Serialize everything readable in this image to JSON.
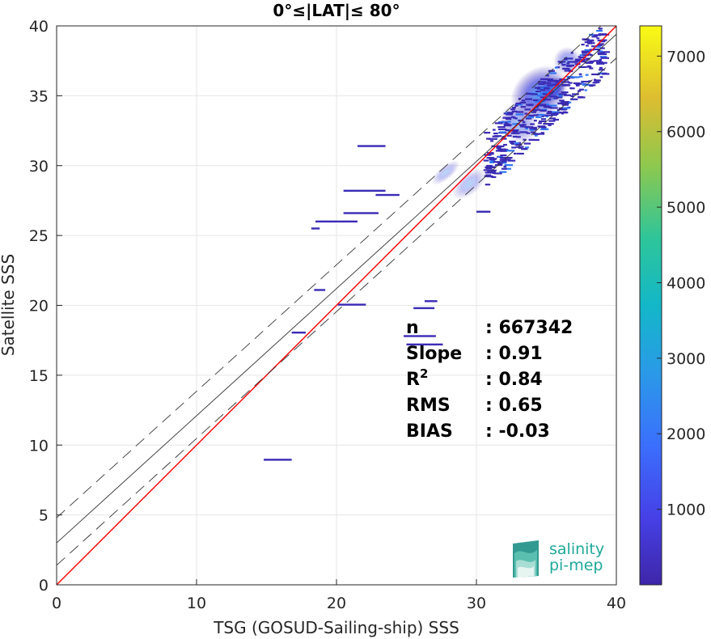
{
  "chart_data": {
    "type": "scatter",
    "title": "0°≤|LAT|≤ 80°",
    "xlabel": "TSG (GOSUD-Sailing-ship) SSS",
    "ylabel": "Satellite SSS",
    "xlim": [
      0,
      40
    ],
    "ylim": [
      0,
      40
    ],
    "xticks": [
      "0",
      "10",
      "20",
      "30",
      "40"
    ],
    "yticks": [
      "0",
      "5",
      "10",
      "15",
      "20",
      "25",
      "30",
      "35",
      "40"
    ],
    "grid": true,
    "colorbar": {
      "range": [
        0,
        7400
      ],
      "ticks": [
        "1000",
        "2000",
        "3000",
        "4000",
        "5000",
        "6000",
        "7000"
      ],
      "colormap": "parula"
    },
    "lines": [
      {
        "kind": "identity",
        "color": "#ff0000",
        "x": [
          0,
          40
        ],
        "y": [
          0,
          40
        ]
      },
      {
        "kind": "regression",
        "color": "#333333",
        "x": [
          0,
          40
        ],
        "y": [
          3.0,
          39.4
        ]
      },
      {
        "kind": "regression-upper",
        "color": "#333333",
        "dash": true,
        "x": [
          0,
          40
        ],
        "y": [
          4.8,
          41.0
        ]
      },
      {
        "kind": "regression-lower",
        "color": "#333333",
        "dash": true,
        "x": [
          0,
          40
        ],
        "y": [
          1.4,
          37.7
        ]
      }
    ],
    "density_clusters": [
      {
        "x": 34.5,
        "y": 35.2,
        "w": 4.5,
        "h": 3.5,
        "density": 2500
      },
      {
        "x": 35.5,
        "y": 35.5,
        "w": 2.0,
        "h": 1.5,
        "density": 4500
      },
      {
        "x": 33.0,
        "y": 33.0,
        "w": 2.5,
        "h": 3.0,
        "density": 800
      },
      {
        "x": 36.5,
        "y": 37.5,
        "w": 2.0,
        "h": 2.0,
        "density": 900
      },
      {
        "x": 29.5,
        "y": 28.7,
        "w": 3.0,
        "h": 1.5,
        "density": 150
      },
      {
        "x": 27.8,
        "y": 29.5,
        "w": 2.5,
        "h": 1.0,
        "density": 100
      }
    ],
    "segments": [
      {
        "x0": 14.8,
        "x1": 16.8,
        "y": 8.95
      },
      {
        "x0": 20.1,
        "x1": 22.1,
        "y": 20.05
      },
      {
        "x0": 18.4,
        "x1": 19.2,
        "y": 21.1
      },
      {
        "x0": 20.5,
        "x1": 23.0,
        "y": 26.6
      },
      {
        "x0": 18.5,
        "x1": 21.5,
        "y": 26.0
      },
      {
        "x0": 20.5,
        "x1": 23.5,
        "y": 28.2
      },
      {
        "x0": 22.8,
        "x1": 24.5,
        "y": 27.9
      },
      {
        "x0": 24.8,
        "x1": 27.1,
        "y": 17.8
      },
      {
        "x0": 25.0,
        "x1": 27.6,
        "y": 17.2
      },
      {
        "x0": 21.5,
        "x1": 23.5,
        "y": 31.4
      },
      {
        "x0": 16.8,
        "x1": 17.8,
        "y": 18.05
      },
      {
        "x0": 25.5,
        "x1": 27.0,
        "y": 19.8
      },
      {
        "x0": 26.3,
        "x1": 27.2,
        "y": 20.3
      },
      {
        "x0": 18.2,
        "x1": 18.8,
        "y": 25.5
      },
      {
        "x0": 30.0,
        "x1": 31.0,
        "y": 26.7
      }
    ],
    "stats": [
      {
        "label": "n",
        "value": ": 667342"
      },
      {
        "label": "Slope",
        "value": ": 0.91"
      },
      {
        "label": "R",
        "sup": "2",
        "value": ": 0.84"
      },
      {
        "label": "RMS",
        "value": ": 0.65"
      },
      {
        "label": "BIAS",
        "value": ": -0.03"
      }
    ]
  },
  "logo": {
    "line1": "salinity",
    "line2": "pi-mep"
  }
}
